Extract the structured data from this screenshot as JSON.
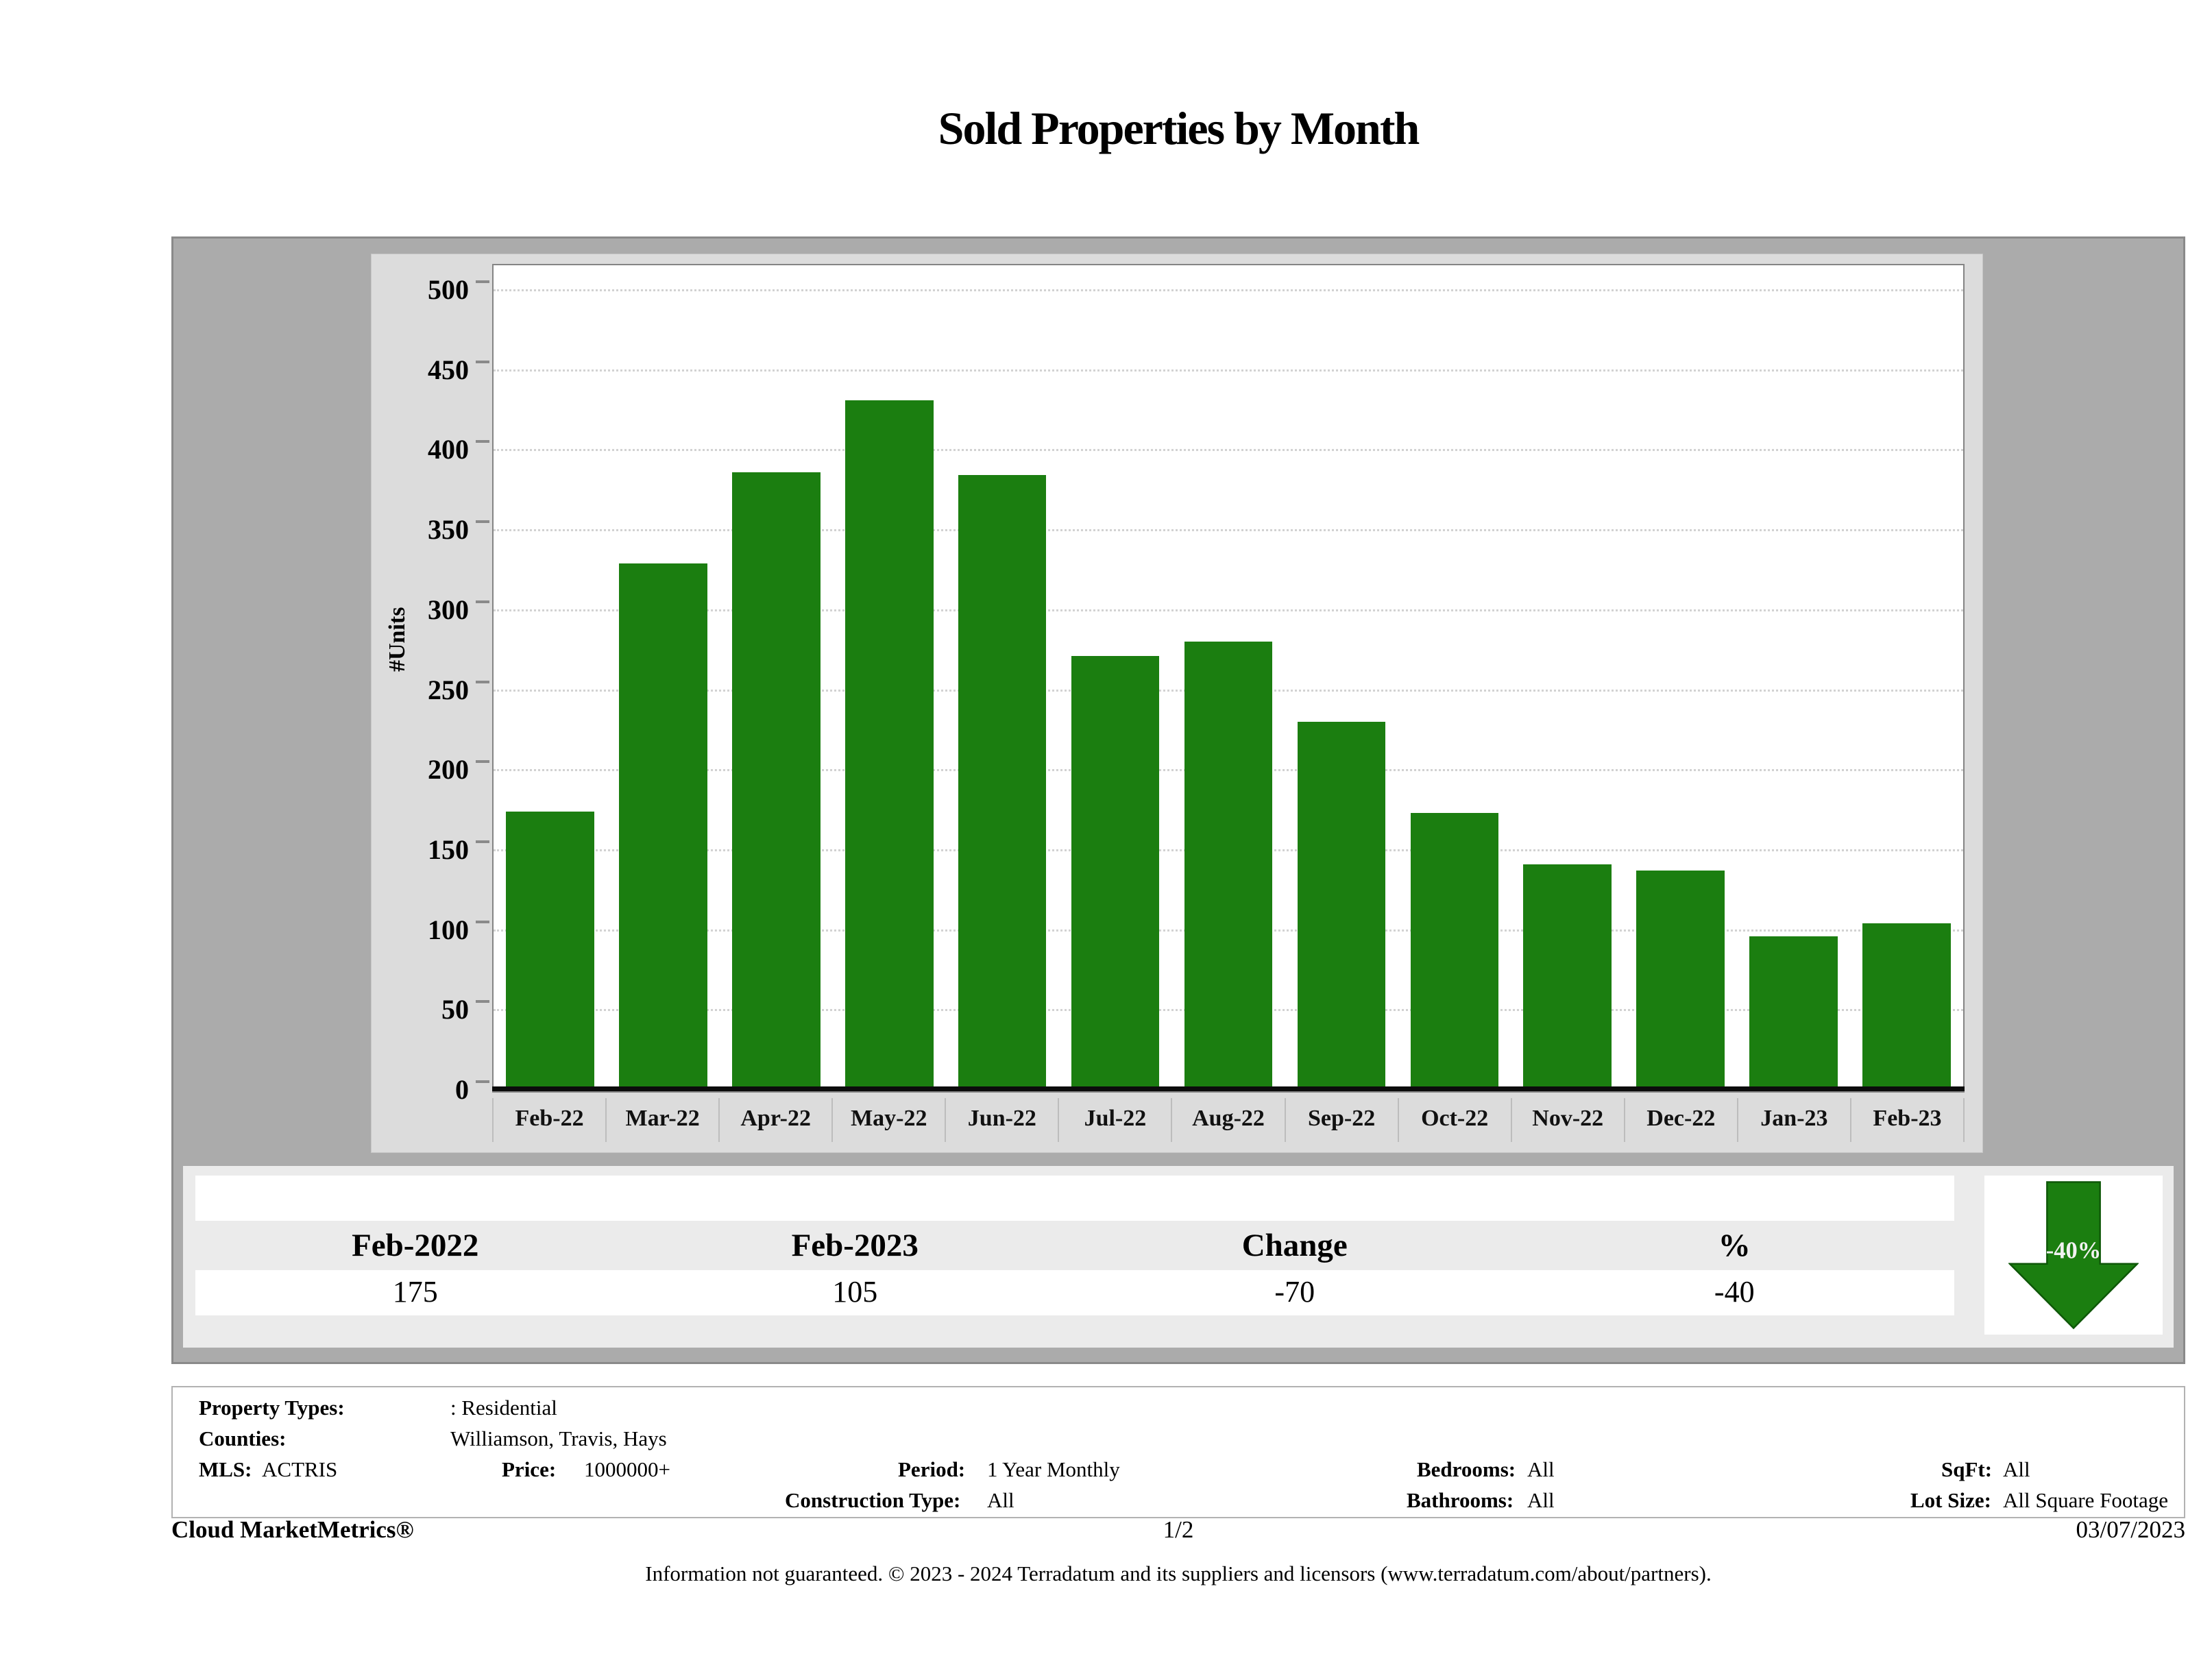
{
  "title": "Sold Properties by Month",
  "chart_data": {
    "type": "bar",
    "title": "Sold Properties by Month",
    "categories": [
      "Feb-22",
      "Mar-22",
      "Apr-22",
      "May-22",
      "Jun-22",
      "Jul-22",
      "Aug-22",
      "Sep-22",
      "Oct-22",
      "Nov-22",
      "Dec-22",
      "Jan-23",
      "Feb-23"
    ],
    "values": [
      175,
      330,
      387,
      432,
      385,
      272,
      281,
      231,
      174,
      142,
      138,
      97,
      105
    ],
    "xlabel": "",
    "ylabel": "#Units",
    "ylim": [
      0,
      500
    ],
    "ytick_step": 50,
    "grid": "horizontal-dotted",
    "legend": "none",
    "bar_color": "#1b7e10"
  },
  "summary_table": {
    "headers": [
      "Feb-2022",
      "Feb-2023",
      "Change",
      "%"
    ],
    "values": [
      "175",
      "105",
      "-70",
      "-40"
    ]
  },
  "change_badge": {
    "label": "-40%",
    "direction": "down",
    "color": "#1b7e10"
  },
  "filters": {
    "property_types_label": "Property Types:",
    "property_types": ": Residential",
    "counties_label": "Counties:",
    "counties": "Williamson, Travis, Hays",
    "mls_label": "MLS:",
    "mls": "ACTRIS",
    "price_label": "Price:",
    "price": "1000000+",
    "period_label": "Period:",
    "period": "1 Year Monthly",
    "construction_label": "Construction Type:",
    "construction": "All",
    "bedrooms_label": "Bedrooms:",
    "bedrooms": "All",
    "bathrooms_label": "Bathrooms:",
    "bathrooms": "All",
    "sqft_label": "SqFt:",
    "sqft": "All",
    "lot_label": "Lot Size:",
    "lot": "All Square Footage"
  },
  "footer": {
    "brand": "Cloud MarketMetrics®",
    "page": "1/2",
    "date": "03/07/2023",
    "disclaimer": "Information not guaranteed. © 2023 - 2024 Terradatum and its suppliers and licensors (www.terradatum.com/about/partners)."
  }
}
